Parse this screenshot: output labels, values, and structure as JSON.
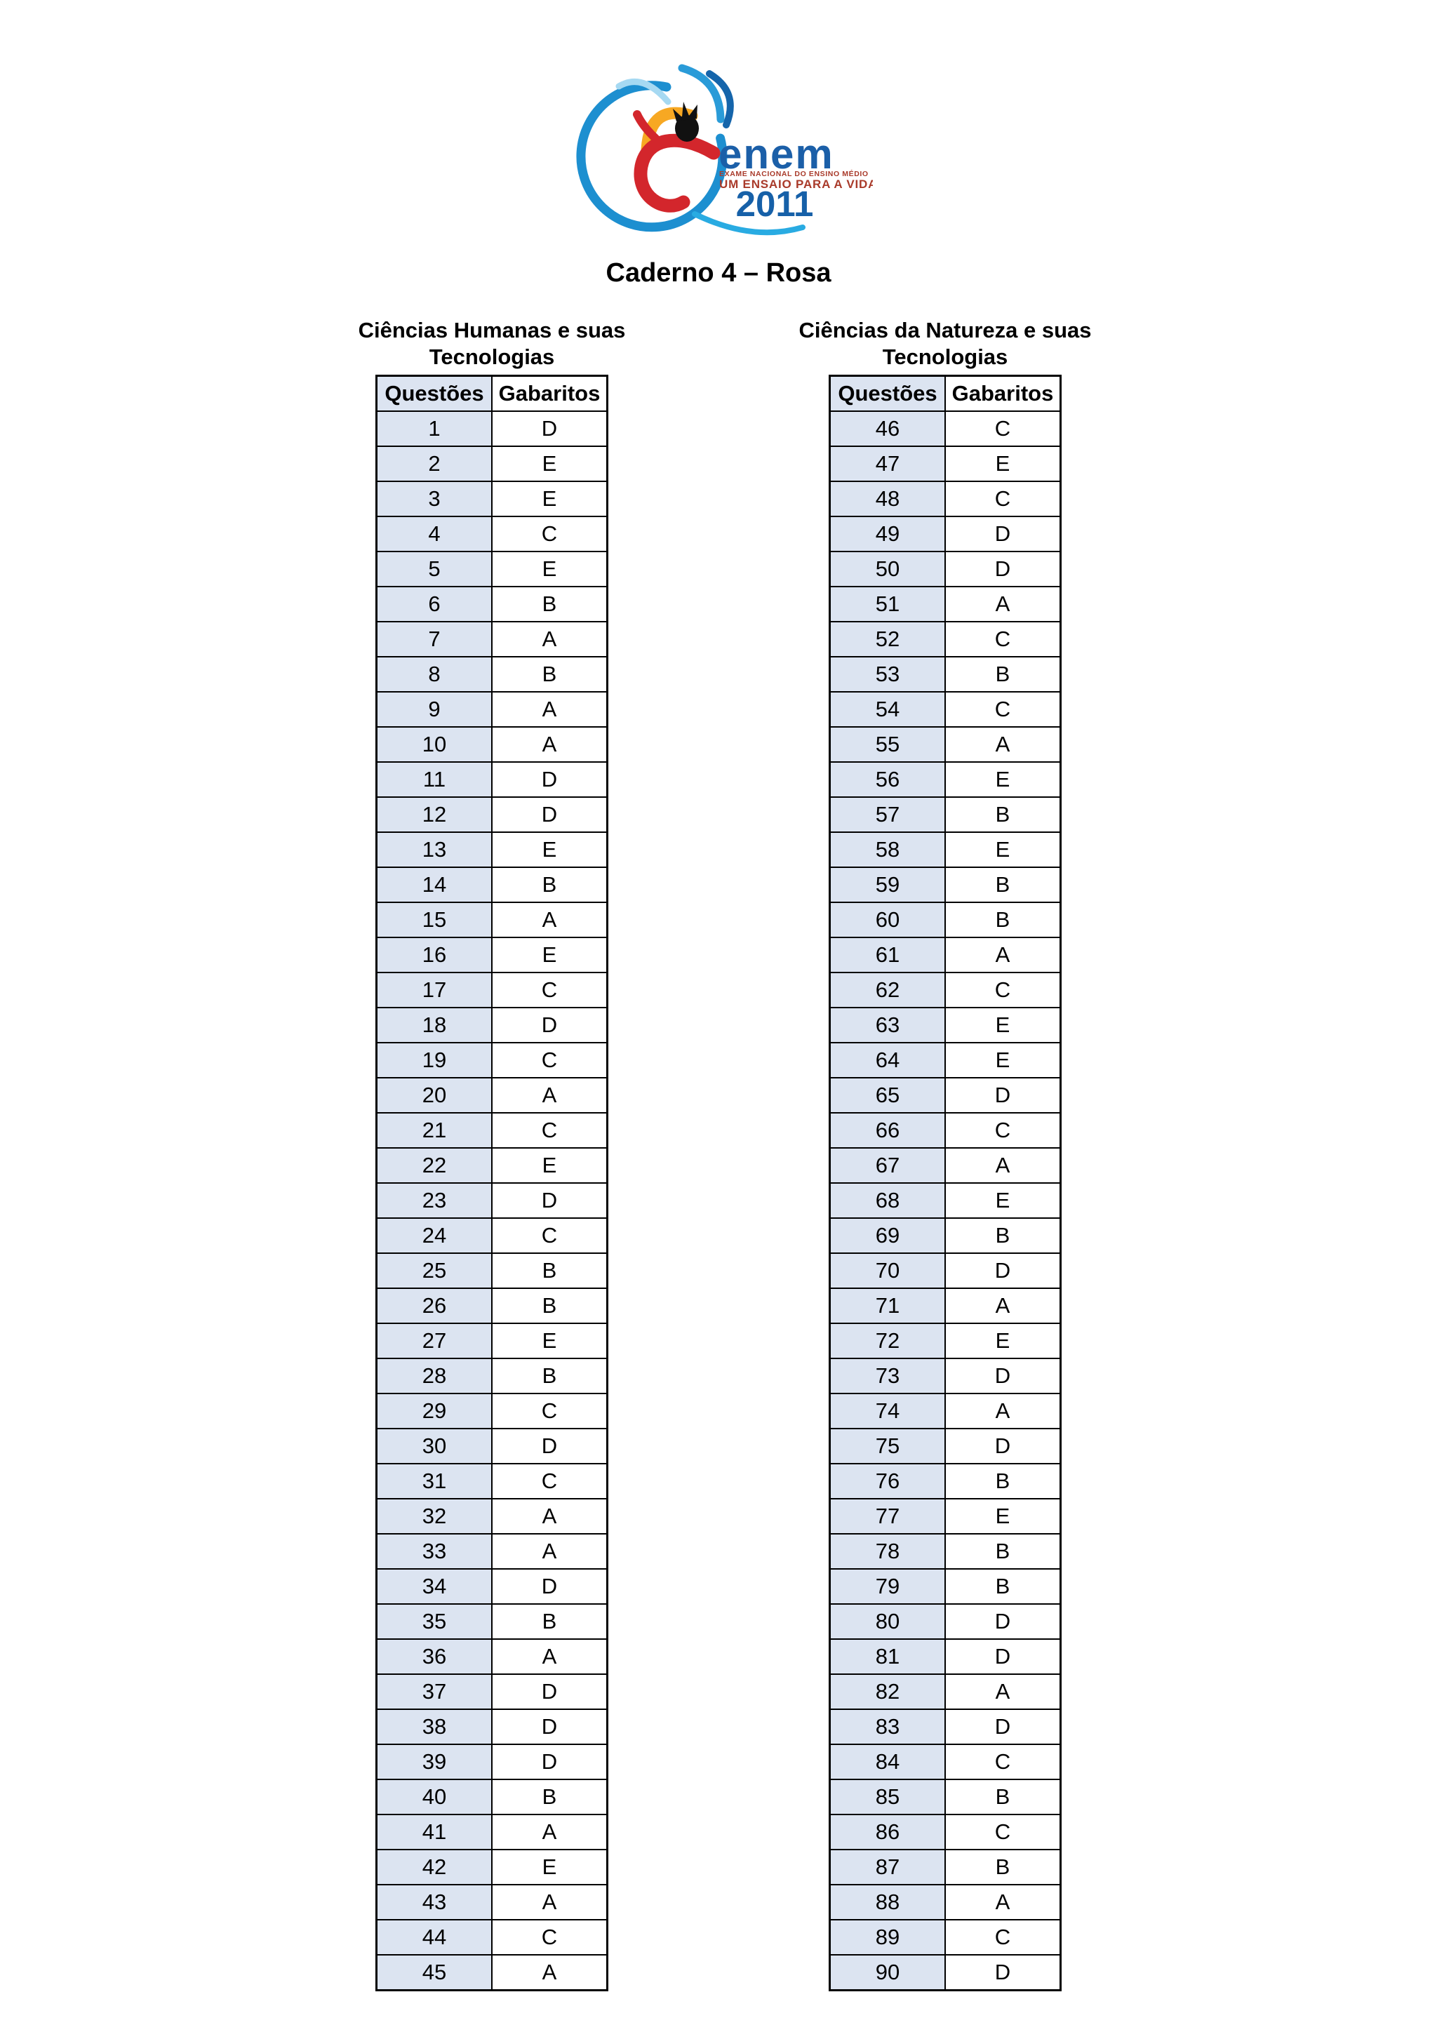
{
  "page": {
    "title": "Caderno 4 – Rosa"
  },
  "logo": {
    "wordmark": "enem",
    "subtitle1": "EXAME NACIONAL DO ENSINO MÉDIO",
    "subtitle2": "UM ENSAIO PARA A VIDA",
    "year": "2011",
    "colors": {
      "circle_blue": "#1d8fd0",
      "tail_blue": "#29abe2",
      "arc_light_blue": "#a6d9f2",
      "arc_medium_blue": "#2a9bd8",
      "arc_dark_blue": "#1565ab",
      "figure_red": "#d3262c",
      "wing_yellow": "#f7a823",
      "head_black": "#111111",
      "wordmark_blue": "#1b5fa8",
      "year_blue": "#1660a8",
      "subtitle_red": "#a93a2a"
    }
  },
  "colors": {
    "cell_blue": "#dce4f1",
    "table_border": "#000000"
  },
  "tables": [
    {
      "title_line1": "Ciências Humanas e suas",
      "title_line2": "Tecnologias",
      "col_headers": [
        "Questões",
        "Gabaritos"
      ],
      "rows": [
        [
          "1",
          "D"
        ],
        [
          "2",
          "E"
        ],
        [
          "3",
          "E"
        ],
        [
          "4",
          "C"
        ],
        [
          "5",
          "E"
        ],
        [
          "6",
          "B"
        ],
        [
          "7",
          "A"
        ],
        [
          "8",
          "B"
        ],
        [
          "9",
          "A"
        ],
        [
          "10",
          "A"
        ],
        [
          "11",
          "D"
        ],
        [
          "12",
          "D"
        ],
        [
          "13",
          "E"
        ],
        [
          "14",
          "B"
        ],
        [
          "15",
          "A"
        ],
        [
          "16",
          "E"
        ],
        [
          "17",
          "C"
        ],
        [
          "18",
          "D"
        ],
        [
          "19",
          "C"
        ],
        [
          "20",
          "A"
        ],
        [
          "21",
          "C"
        ],
        [
          "22",
          "E"
        ],
        [
          "23",
          "D"
        ],
        [
          "24",
          "C"
        ],
        [
          "25",
          "B"
        ],
        [
          "26",
          "B"
        ],
        [
          "27",
          "E"
        ],
        [
          "28",
          "B"
        ],
        [
          "29",
          "C"
        ],
        [
          "30",
          "D"
        ],
        [
          "31",
          "C"
        ],
        [
          "32",
          "A"
        ],
        [
          "33",
          "A"
        ],
        [
          "34",
          "D"
        ],
        [
          "35",
          "B"
        ],
        [
          "36",
          "A"
        ],
        [
          "37",
          "D"
        ],
        [
          "38",
          "D"
        ],
        [
          "39",
          "D"
        ],
        [
          "40",
          "B"
        ],
        [
          "41",
          "A"
        ],
        [
          "42",
          "E"
        ],
        [
          "43",
          "A"
        ],
        [
          "44",
          "C"
        ],
        [
          "45",
          "A"
        ]
      ]
    },
    {
      "title_line1": "Ciências da Natureza e suas",
      "title_line2": "Tecnologias",
      "col_headers": [
        "Questões",
        "Gabaritos"
      ],
      "rows": [
        [
          "46",
          "C"
        ],
        [
          "47",
          "E"
        ],
        [
          "48",
          "C"
        ],
        [
          "49",
          "D"
        ],
        [
          "50",
          "D"
        ],
        [
          "51",
          "A"
        ],
        [
          "52",
          "C"
        ],
        [
          "53",
          "B"
        ],
        [
          "54",
          "C"
        ],
        [
          "55",
          "A"
        ],
        [
          "56",
          "E"
        ],
        [
          "57",
          "B"
        ],
        [
          "58",
          "E"
        ],
        [
          "59",
          "B"
        ],
        [
          "60",
          "B"
        ],
        [
          "61",
          "A"
        ],
        [
          "62",
          "C"
        ],
        [
          "63",
          "E"
        ],
        [
          "64",
          "E"
        ],
        [
          "65",
          "D"
        ],
        [
          "66",
          "C"
        ],
        [
          "67",
          "A"
        ],
        [
          "68",
          "E"
        ],
        [
          "69",
          "B"
        ],
        [
          "70",
          "D"
        ],
        [
          "71",
          "A"
        ],
        [
          "72",
          "E"
        ],
        [
          "73",
          "D"
        ],
        [
          "74",
          "A"
        ],
        [
          "75",
          "D"
        ],
        [
          "76",
          "B"
        ],
        [
          "77",
          "E"
        ],
        [
          "78",
          "B"
        ],
        [
          "79",
          "B"
        ],
        [
          "80",
          "D"
        ],
        [
          "81",
          "D"
        ],
        [
          "82",
          "A"
        ],
        [
          "83",
          "D"
        ],
        [
          "84",
          "C"
        ],
        [
          "85",
          "B"
        ],
        [
          "86",
          "C"
        ],
        [
          "87",
          "B"
        ],
        [
          "88",
          "A"
        ],
        [
          "89",
          "C"
        ],
        [
          "90",
          "D"
        ]
      ]
    }
  ]
}
